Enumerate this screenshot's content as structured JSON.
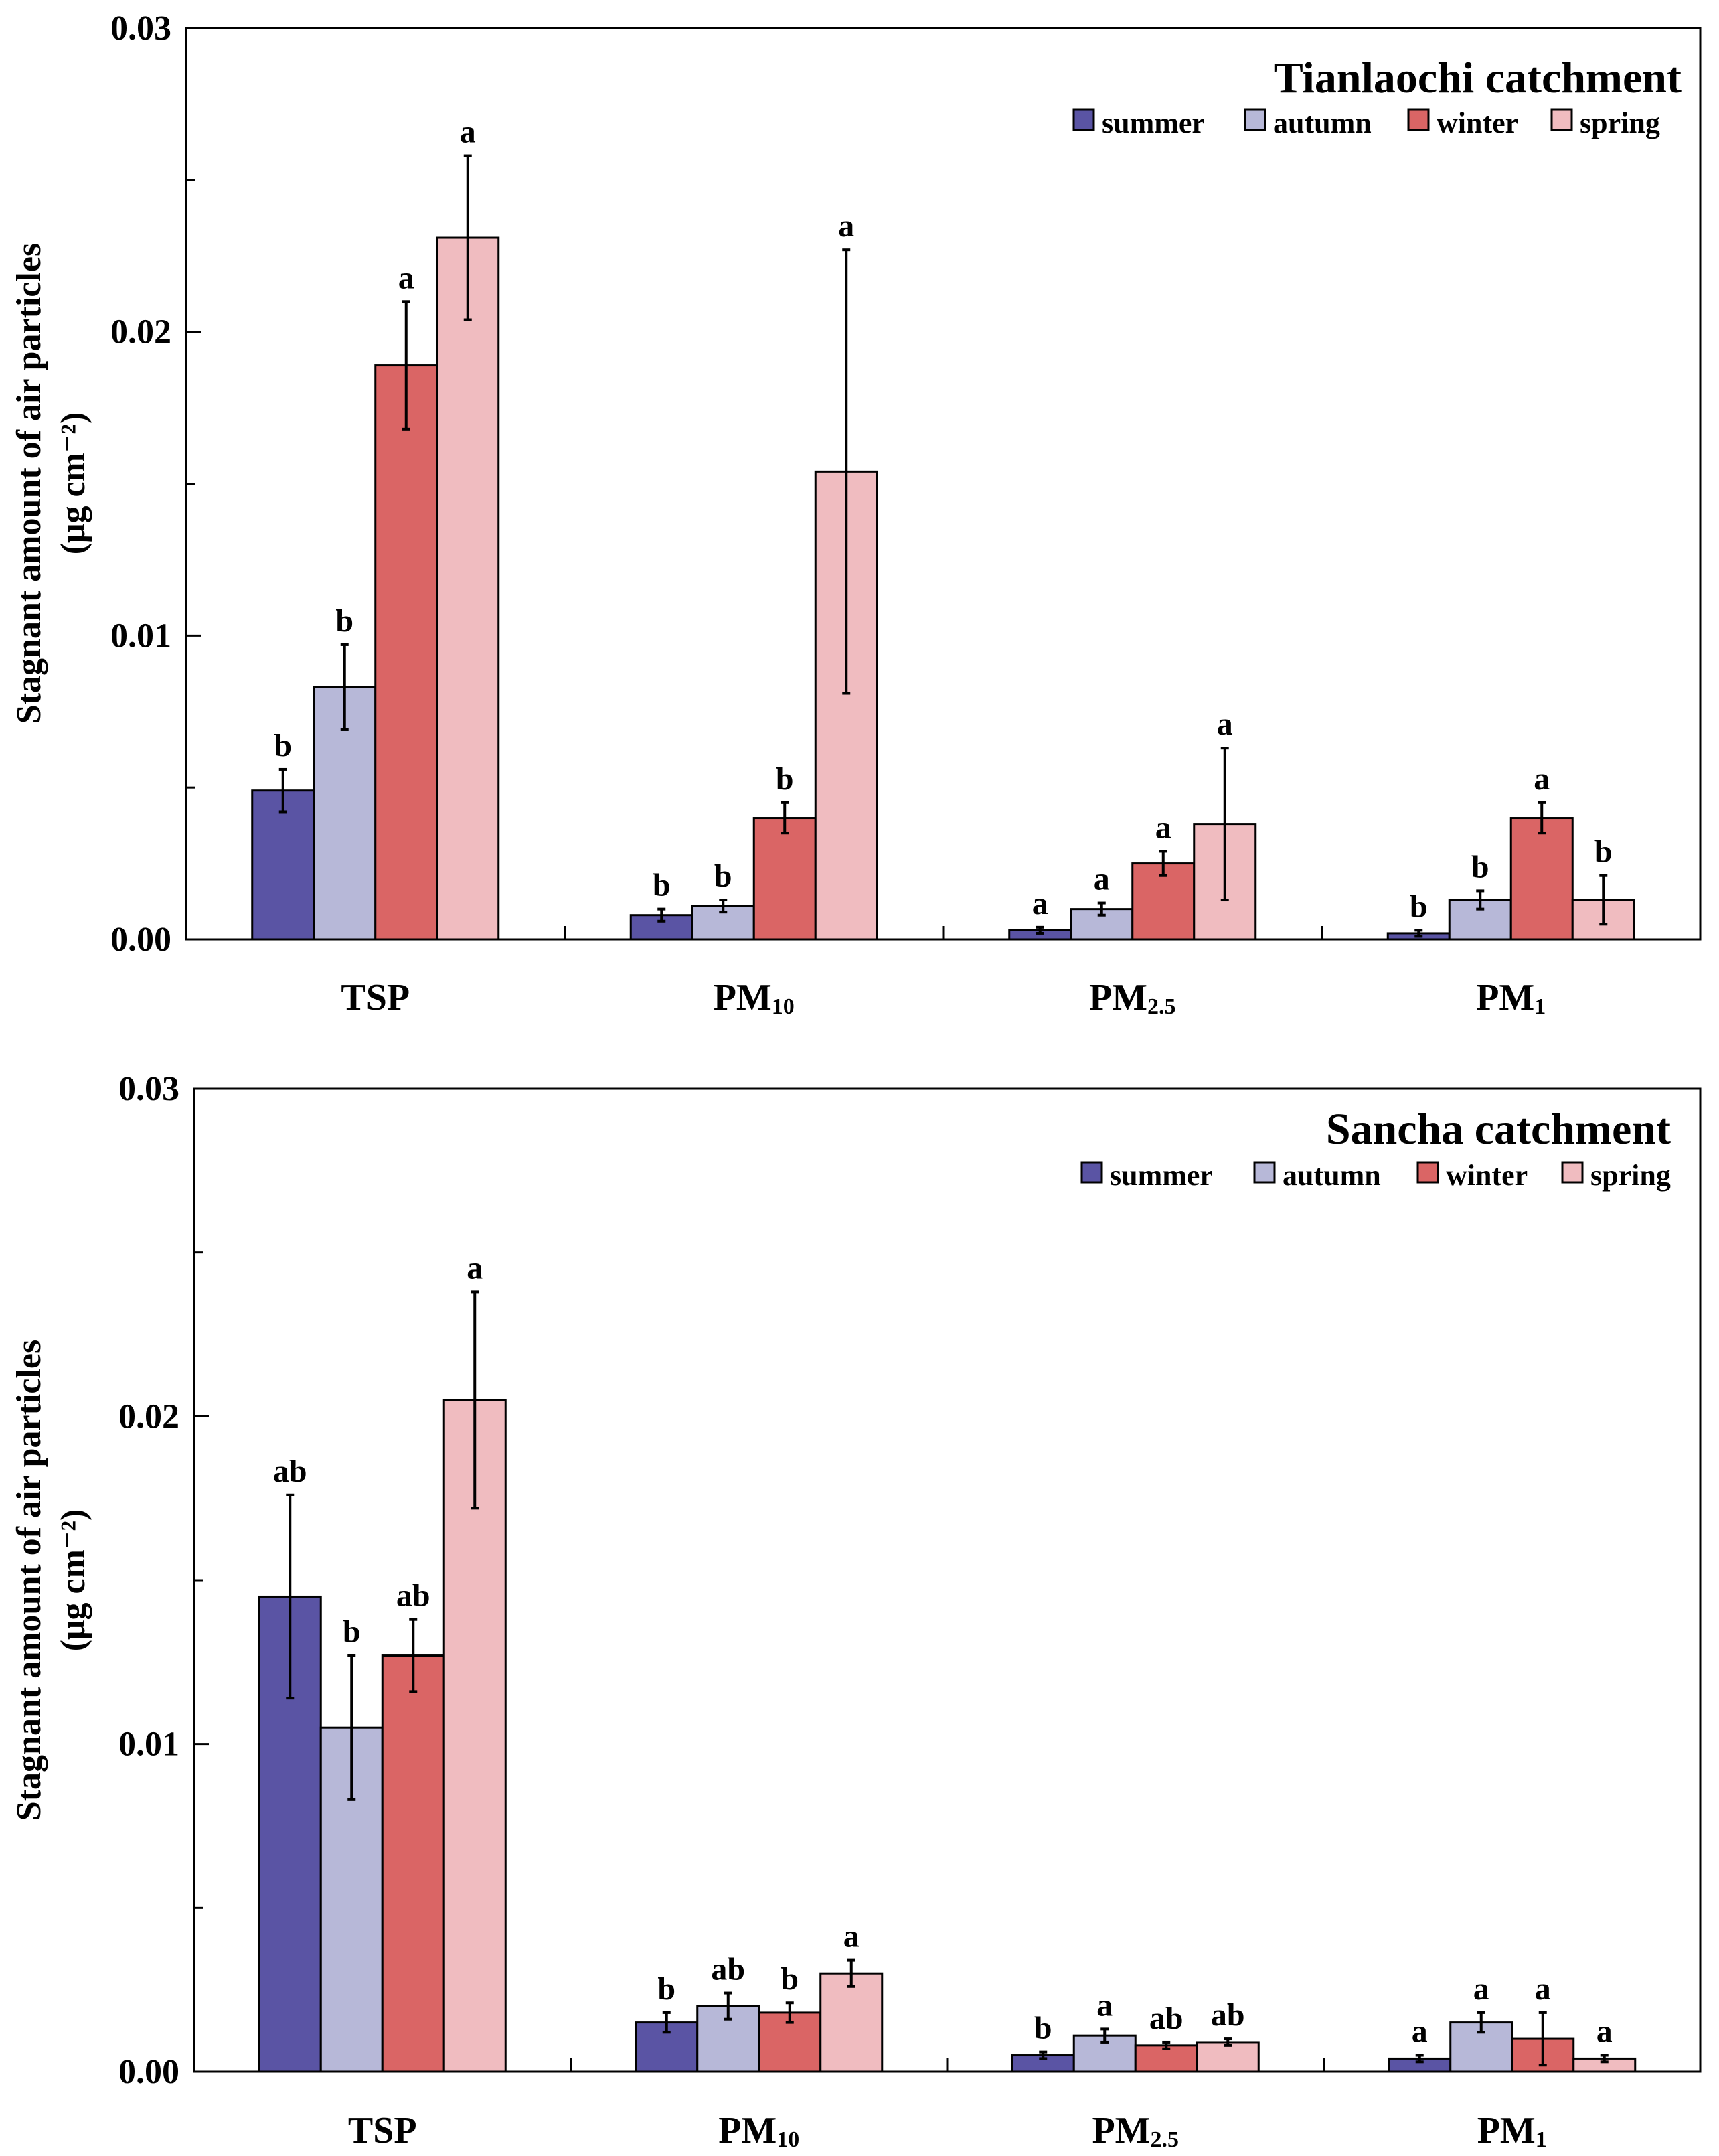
{
  "figure": {
    "ylabel_line1": "Stagnant amount of air particles",
    "ylabel_line2": "(μg cm⁻²)"
  },
  "chart_data": [
    {
      "type": "bar",
      "title": "Tianlaochi catchment",
      "ylabel": "Stagnant amount of air particles (μg cm⁻²)",
      "ylim": [
        0,
        0.03
      ],
      "yticks": [
        "0.00",
        "0.01",
        "0.02",
        "0.03"
      ],
      "ytick_values": [
        0,
        0.01,
        0.02,
        0.03
      ],
      "categories": [
        {
          "main": "TSP",
          "sub": ""
        },
        {
          "main": "PM",
          "sub": "10"
        },
        {
          "main": "PM",
          "sub": "2.5"
        },
        {
          "main": "PM",
          "sub": "1"
        }
      ],
      "legend_position": "top-right",
      "series": [
        {
          "name": "summer",
          "color": "#5a54a4",
          "values": [
            0.0049,
            0.0008,
            0.0003,
            0.0002
          ],
          "errors": [
            0.0007,
            0.0002,
            0.0001,
            0.0001
          ],
          "letters": [
            "b",
            "b",
            "a",
            "b"
          ]
        },
        {
          "name": "autumn",
          "color": "#b7b8d8",
          "values": [
            0.0083,
            0.0011,
            0.001,
            0.0013
          ],
          "errors": [
            0.0014,
            0.0002,
            0.0002,
            0.0003
          ],
          "letters": [
            "b",
            "b",
            "a",
            "b"
          ]
        },
        {
          "name": "winter",
          "color": "#da6565",
          "values": [
            0.0189,
            0.004,
            0.0025,
            0.004
          ],
          "errors": [
            0.0021,
            0.0005,
            0.0004,
            0.0005
          ],
          "letters": [
            "a",
            "b",
            "a",
            "a"
          ]
        },
        {
          "name": "spring",
          "color": "#f0bcc0",
          "values": [
            0.0231,
            0.0154,
            0.0038,
            0.0013
          ],
          "errors": [
            0.0027,
            0.0073,
            0.0025,
            0.0008
          ],
          "letters": [
            "a",
            "a",
            "a",
            "b"
          ]
        }
      ]
    },
    {
      "type": "bar",
      "title": "Sancha catchment",
      "ylabel": "Stagnant amount of air particles (μg cm⁻²)",
      "ylim": [
        0,
        0.03
      ],
      "yticks": [
        "0.00",
        "0.01",
        "0.02",
        "0.03"
      ],
      "ytick_values": [
        0,
        0.01,
        0.02,
        0.03
      ],
      "categories": [
        {
          "main": "TSP",
          "sub": ""
        },
        {
          "main": "PM",
          "sub": "10"
        },
        {
          "main": "PM",
          "sub": "2.5"
        },
        {
          "main": "PM",
          "sub": "1"
        }
      ],
      "legend_position": "top-right",
      "series": [
        {
          "name": "summer",
          "color": "#5a54a4",
          "values": [
            0.0145,
            0.0015,
            0.0005,
            0.0004
          ],
          "errors": [
            0.0031,
            0.0003,
            0.0001,
            0.0001
          ],
          "letters": [
            "ab",
            "b",
            "b",
            "a"
          ]
        },
        {
          "name": "autumn",
          "color": "#b7b8d8",
          "values": [
            0.0105,
            0.002,
            0.0011,
            0.0015
          ],
          "errors": [
            0.0022,
            0.0004,
            0.0002,
            0.0003
          ],
          "letters": [
            "b",
            "ab",
            "a",
            "a"
          ]
        },
        {
          "name": "winter",
          "color": "#da6565",
          "values": [
            0.0127,
            0.0018,
            0.0008,
            0.001
          ],
          "errors": [
            0.0011,
            0.0003,
            0.0001,
            0.0008
          ],
          "letters": [
            "ab",
            "b",
            "ab",
            "a"
          ]
        },
        {
          "name": "spring",
          "color": "#f0bcc0",
          "values": [
            0.0205,
            0.003,
            0.0009,
            0.0004
          ],
          "errors": [
            0.0033,
            0.0004,
            0.0001,
            0.0001
          ],
          "letters": [
            "a",
            "a",
            "ab",
            "a"
          ]
        }
      ]
    }
  ]
}
